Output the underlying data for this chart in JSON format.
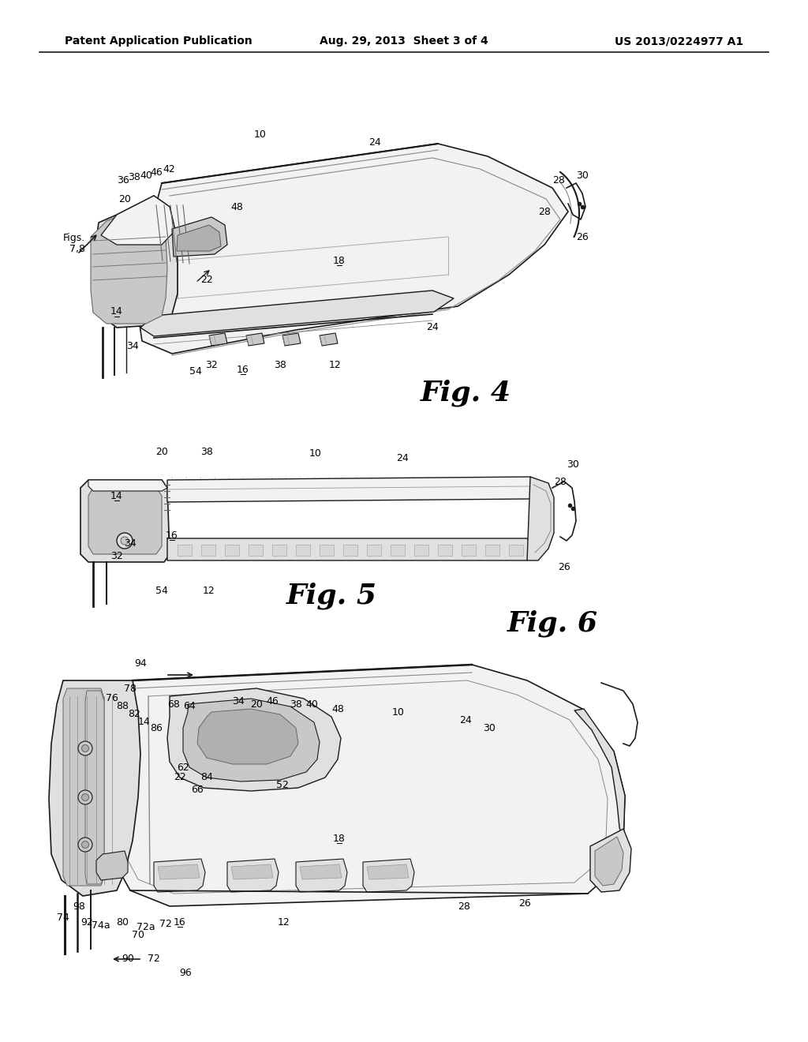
{
  "background_color": "#ffffff",
  "header_left": "Patent Application Publication",
  "header_center": "Aug. 29, 2013  Sheet 3 of 4",
  "header_right": "US 2013/0224977 A1",
  "fig4_label": "Fig. 4",
  "fig5_label": "Fig. 5",
  "fig6_label": "Fig. 6",
  "line_color": "#1a1a1a",
  "fill_light": "#f2f2f2",
  "fill_mid": "#e0e0e0",
  "fill_dark": "#c8c8c8",
  "fill_shadow": "#b0b0b0",
  "label_fs": 9,
  "fig_label_fs": 26
}
